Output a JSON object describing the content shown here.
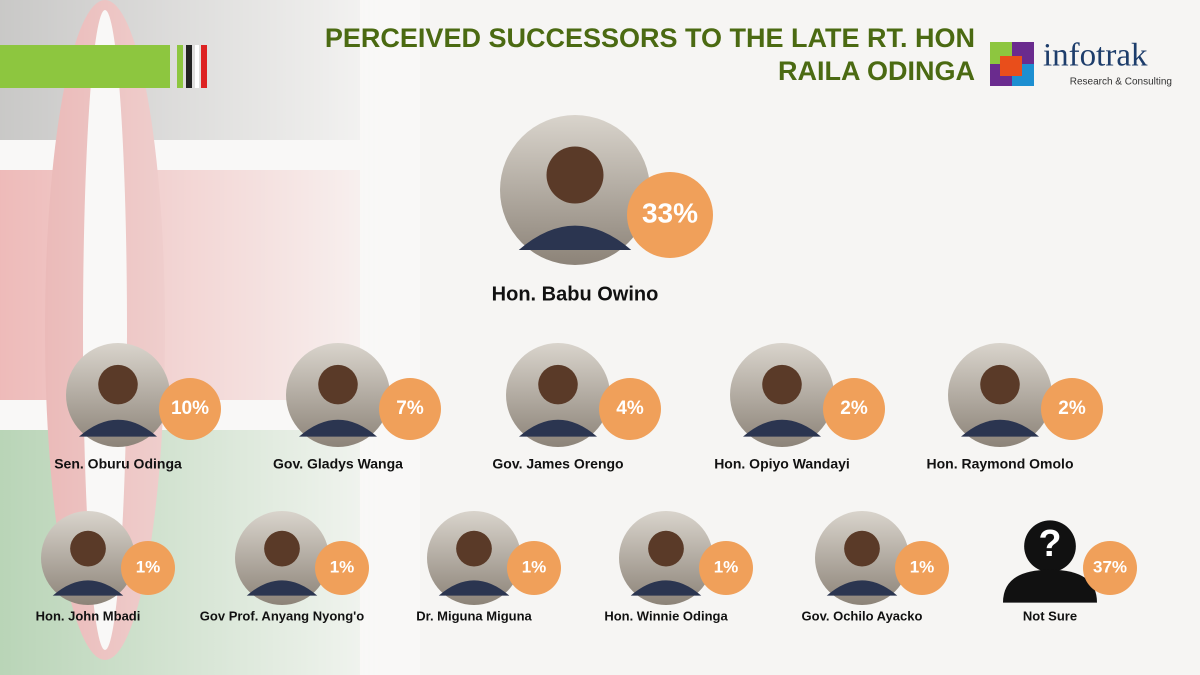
{
  "header": {
    "title_lines": [
      "PERCEIVED SUCCESSORS TO THE LATE RT. HON",
      "RAILA ODINGA"
    ]
  },
  "brand": {
    "name": "infotrak",
    "tagline": "Research & Consulting"
  },
  "featured": {
    "name": "Hon. Babu Owino",
    "share": "33%"
  },
  "candidates": [
    {
      "name": "Sen. Oburu Odinga",
      "share": "10%"
    },
    {
      "name": "Gov. Gladys Wanga",
      "share": "7%"
    },
    {
      "name": "Gov. James Orengo",
      "share": "4%"
    },
    {
      "name": "Hon. Opiyo Wandayi",
      "share": "2%"
    },
    {
      "name": "Hon. Raymond Omolo",
      "share": "2%"
    },
    {
      "name": "Hon. John Mbadi",
      "share": "1%"
    },
    {
      "name": "Gov Prof. Anyang Nyong'o",
      "share": "1%"
    },
    {
      "name": "Dr. Miguna Miguna",
      "share": "1%"
    },
    {
      "name": "Hon. Winnie Odinga",
      "share": "1%"
    },
    {
      "name": "Gov. Ochilo Ayacko",
      "share": "1%"
    },
    {
      "name": "Not Sure",
      "share": "37%"
    }
  ]
}
